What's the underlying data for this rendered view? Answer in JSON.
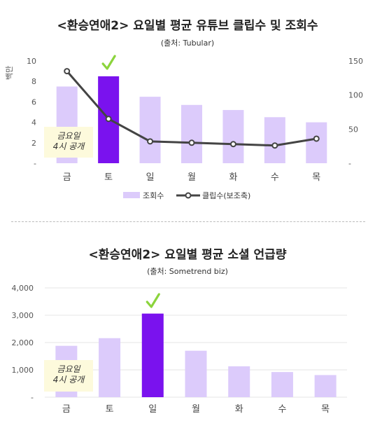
{
  "chart_data": [
    {
      "type": "bar",
      "title": "<환승연애2> 요일별 평균 유튜브 클립수 및 조회수",
      "source": "(출처: Tubular)",
      "categories": [
        "금",
        "토",
        "일",
        "월",
        "화",
        "수",
        "목"
      ],
      "ylabel": "백만",
      "ylim": [
        0,
        10
      ],
      "yticks": [
        "-",
        "2",
        "4",
        "6",
        "8",
        "10"
      ],
      "y2lim": [
        0,
        150
      ],
      "y2ticks": [
        "-",
        "50",
        "100",
        "150"
      ],
      "highlight_index": 1,
      "annotation": [
        "금요일",
        "4시 공개"
      ],
      "series": [
        {
          "name": "조회수",
          "type": "bar",
          "values": [
            7.5,
            8.5,
            6.5,
            5.7,
            5.2,
            4.5,
            4.0
          ]
        },
        {
          "name": "클립수(보조축)",
          "type": "line",
          "axis": "secondary",
          "values": [
            135,
            65,
            32,
            30,
            28,
            26,
            36
          ]
        }
      ],
      "colors": {
        "bar": "#dccbfb",
        "highlight": "#7a12ee",
        "line": "#444444",
        "note_bg": "#fdfadc",
        "check": "#8bd43c"
      }
    },
    {
      "type": "bar",
      "title": "<환승연애2> 요일별 평균 소셜 언급량",
      "source": "(출처: Sometrend biz)",
      "categories": [
        "금",
        "토",
        "일",
        "월",
        "화",
        "수",
        "목"
      ],
      "ylim": [
        0,
        4000
      ],
      "yticks": [
        "-",
        "1,000",
        "2,000",
        "3,000",
        "4,000"
      ],
      "highlight_index": 2,
      "annotation": [
        "금요일",
        "4시 공개"
      ],
      "series": [
        {
          "name": "언급량",
          "values": [
            1880,
            2160,
            3060,
            1700,
            1130,
            920,
            810
          ]
        }
      ],
      "colors": {
        "bar": "#dccbfb",
        "highlight": "#7a12ee",
        "note_bg": "#fdfadc",
        "check": "#8bd43c"
      }
    }
  ]
}
